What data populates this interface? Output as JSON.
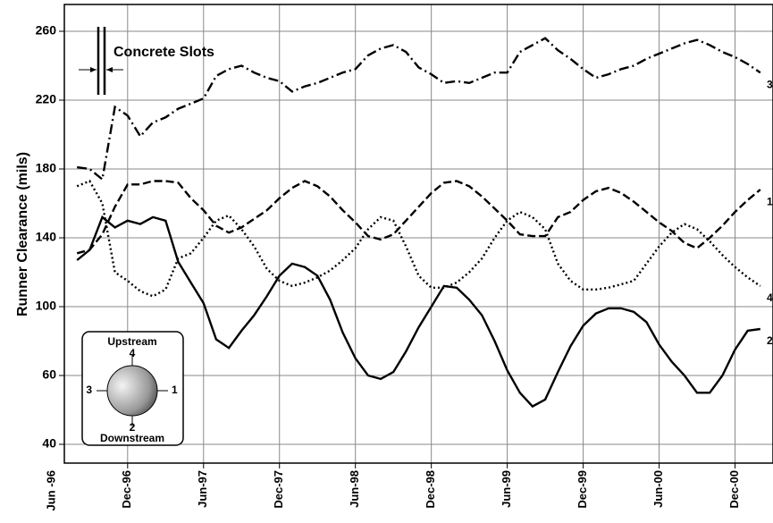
{
  "chart_data": {
    "type": "line",
    "ylabel": "Runner Clearance (mils)",
    "annotation": "Concrete Slots",
    "legend_inset": {
      "top": "Upstream",
      "bottom": "Downstream"
    },
    "x": [
      "1996-08",
      "1996-09",
      "1996-10",
      "1996-11",
      "1996-12",
      "1997-01",
      "1997-02",
      "1997-03",
      "1997-04",
      "1997-05",
      "1997-06",
      "1997-07",
      "1997-08",
      "1997-09",
      "1997-10",
      "1997-11",
      "1997-12",
      "1998-01",
      "1998-02",
      "1998-03",
      "1998-04",
      "1998-05",
      "1998-06",
      "1998-07",
      "1998-08",
      "1998-09",
      "1998-10",
      "1998-11",
      "1998-12",
      "1999-01",
      "1999-02",
      "1999-03",
      "1999-04",
      "1999-05",
      "1999-06",
      "1999-07",
      "1999-08",
      "1999-09",
      "1999-10",
      "1999-11",
      "1999-12",
      "2000-01",
      "2000-02",
      "2000-03",
      "2000-04",
      "2000-05",
      "2000-06",
      "2000-07",
      "2000-08",
      "2000-09",
      "2000-10",
      "2000-11",
      "2000-12",
      "2001-01",
      "2001-02"
    ],
    "series": [
      {
        "name": "1",
        "color": "#000000",
        "style": "dashed",
        "values": [
          131,
          133,
          142,
          158,
          171,
          171,
          173,
          173,
          172,
          163,
          156,
          147,
          143,
          146,
          151,
          156,
          163,
          169,
          173,
          170,
          164,
          156,
          149,
          141,
          139,
          142,
          150,
          158,
          166,
          172,
          173,
          170,
          164,
          157,
          150,
          142,
          141,
          141,
          152,
          155,
          162,
          167,
          169,
          166,
          161,
          155,
          149,
          144,
          137,
          134,
          140,
          147,
          155,
          162,
          168
        ]
      },
      {
        "name": "2",
        "color": "#000000",
        "style": "solid",
        "values": [
          127,
          133,
          152,
          146,
          150,
          148,
          152,
          150,
          126,
          114,
          102,
          81,
          76,
          86,
          95,
          106,
          118,
          125,
          123,
          118,
          104,
          85,
          70,
          60,
          59,
          62,
          74,
          88,
          100,
          112,
          111,
          104,
          95,
          80,
          63,
          55,
          51,
          53,
          62,
          77,
          89,
          96,
          99,
          99,
          97,
          91,
          78,
          68,
          60,
          55,
          55,
          60,
          75,
          86,
          87
        ]
      },
      {
        "name": "3",
        "color": "#000000",
        "style": "dashdot",
        "values": [
          181,
          180,
          174,
          216,
          211,
          199,
          207,
          210,
          215,
          218,
          221,
          234,
          238,
          240,
          236,
          233,
          231,
          225,
          228,
          230,
          233,
          236,
          238,
          246,
          250,
          252,
          248,
          239,
          235,
          230,
          231,
          230,
          233,
          236,
          236,
          248,
          252,
          256,
          249,
          244,
          238,
          233,
          235,
          238,
          240,
          244,
          247,
          250,
          253,
          255,
          252,
          248,
          245,
          241,
          236
        ]
      },
      {
        "name": "4",
        "color": "#000000",
        "style": "dotted",
        "values": [
          170,
          173,
          160,
          120,
          115,
          109,
          106,
          110,
          128,
          131,
          140,
          150,
          153,
          145,
          135,
          122,
          115,
          112,
          114,
          117,
          121,
          127,
          134,
          145,
          152,
          150,
          135,
          118,
          111,
          111,
          114,
          120,
          128,
          140,
          150,
          155,
          152,
          145,
          125,
          115,
          110,
          110,
          111,
          113,
          115,
          125,
          135,
          143,
          148,
          145,
          138,
          130,
          123,
          117,
          112
        ]
      }
    ],
    "xlim": [
      "1996-07",
      "2001-03"
    ],
    "xticks": [
      {
        "value": "1996-06",
        "label": "Jun -96"
      },
      {
        "value": "1996-12",
        "label": "Dec-96"
      },
      {
        "value": "1997-06",
        "label": "Jun-97"
      },
      {
        "value": "1997-12",
        "label": "Dec-97"
      },
      {
        "value": "1998-06",
        "label": "Jun-98"
      },
      {
        "value": "1998-12",
        "label": "Dec-98"
      },
      {
        "value": "1999-06",
        "label": "Jun-99"
      },
      {
        "value": "1999-12",
        "label": "Dec-99"
      },
      {
        "value": "2000-06",
        "label": "Jun-00"
      },
      {
        "value": "2000-12",
        "label": "Dec-00"
      }
    ],
    "ylim": [
      34.5,
      275.6
    ],
    "yticks": [
      40,
      60,
      100,
      140,
      180,
      220,
      260
    ],
    "grid": true
  }
}
